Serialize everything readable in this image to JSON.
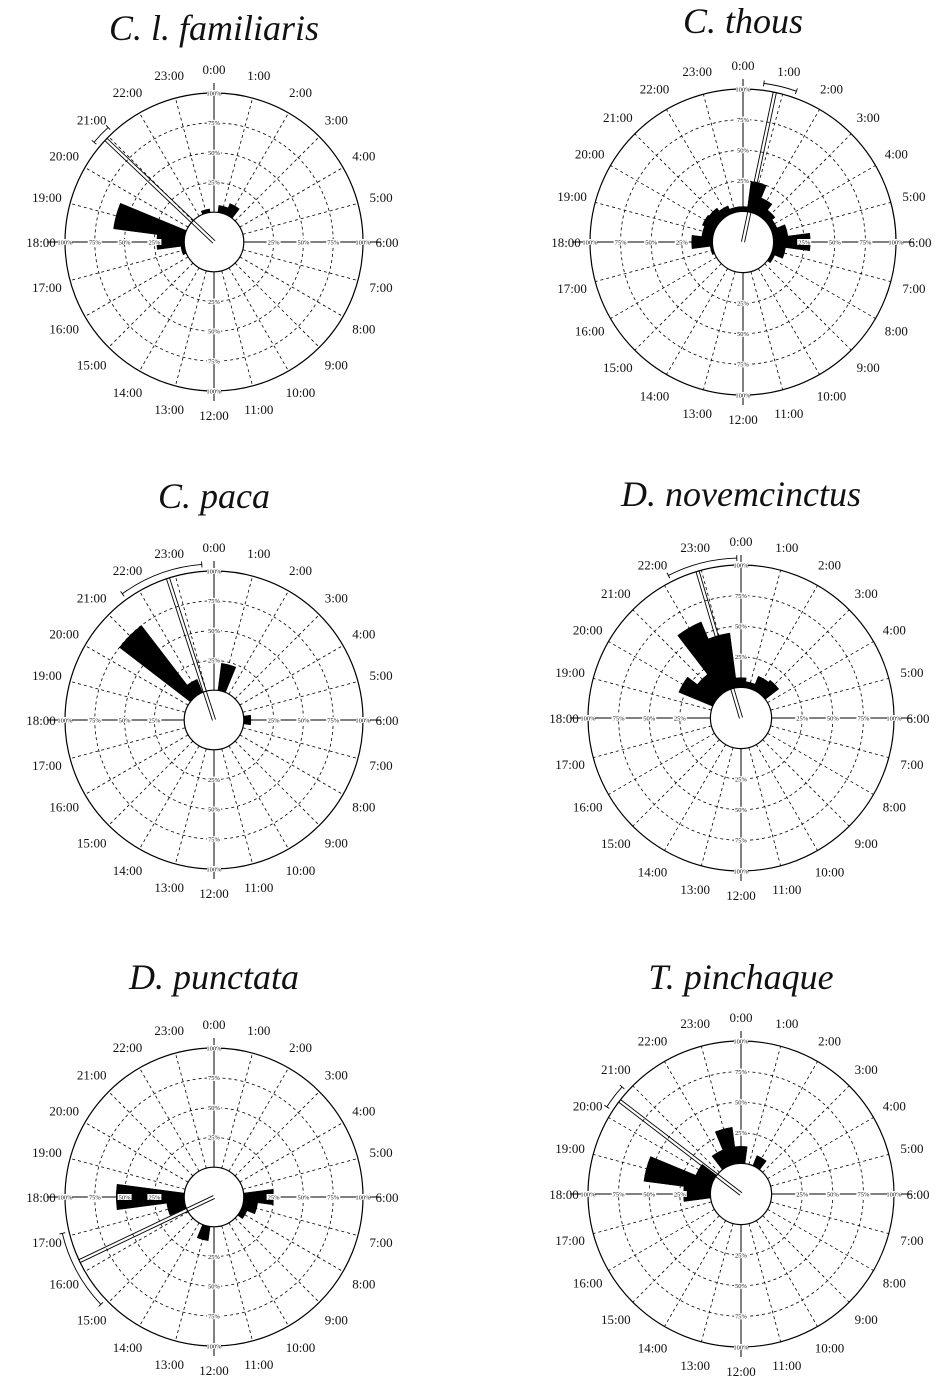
{
  "chart_data": [
    {
      "type": "rose",
      "title": "C. l. familiaris",
      "hour_labels": [
        "0:00",
        "1:00",
        "2:00",
        "3:00",
        "4:00",
        "5:00",
        "6:00",
        "7:00",
        "8:00",
        "9:00",
        "10:00",
        "11:00",
        "12:00",
        "13:00",
        "14:00",
        "15:00",
        "16:00",
        "17:00",
        "18:00",
        "19:00",
        "20:00",
        "21:00",
        "22:00",
        "23:00"
      ],
      "ring_labels": [
        "25%",
        "50%",
        "75%",
        "100%"
      ],
      "rlim": [
        0,
        100
      ],
      "values": [
        0,
        6,
        10,
        0,
        0,
        0,
        0,
        0,
        0,
        0,
        0,
        0,
        0,
        0,
        0,
        0,
        0,
        3,
        23,
        60,
        0,
        0,
        0,
        3
      ],
      "mean_hour": 20.9,
      "ci_hours": [
        20.65,
        21.15
      ],
      "mean_length": 100
    },
    {
      "type": "rose",
      "title": "C. thous",
      "hour_labels": [
        "0:00",
        "1:00",
        "2:00",
        "3:00",
        "4:00",
        "5:00",
        "6:00",
        "7:00",
        "8:00",
        "9:00",
        "10:00",
        "11:00",
        "12:00",
        "13:00",
        "14:00",
        "15:00",
        "16:00",
        "17:00",
        "18:00",
        "19:00",
        "20:00",
        "21:00",
        "22:00",
        "23:00"
      ],
      "ring_labels": [
        "25%",
        "50%",
        "75%",
        "100%"
      ],
      "rlim": [
        0,
        100
      ],
      "values": [
        4,
        25,
        14,
        8,
        5,
        12,
        30,
        10,
        3,
        0,
        0,
        0,
        0,
        0,
        0,
        0,
        0,
        2,
        17,
        9,
        11,
        10,
        7,
        4
      ],
      "mean_hour": 0.8,
      "ci_hours": [
        0.5,
        1.3
      ],
      "mean_length": 100
    },
    {
      "type": "rose",
      "title": "C. paca",
      "hour_labels": [
        "0:00",
        "1:00",
        "2:00",
        "3:00",
        "4:00",
        "5:00",
        "6:00",
        "7:00",
        "8:00",
        "9:00",
        "10:00",
        "11:00",
        "12:00",
        "13:00",
        "14:00",
        "15:00",
        "16:00",
        "17:00",
        "18:00",
        "19:00",
        "20:00",
        "21:00",
        "22:00",
        "23:00"
      ],
      "ring_labels": [
        "25%",
        "50%",
        "75%",
        "100%"
      ],
      "rlim": [
        0,
        100
      ],
      "values": [
        0,
        23,
        0,
        0,
        0,
        0,
        6,
        0,
        0,
        0,
        0,
        0,
        0,
        0,
        0,
        0,
        0,
        0,
        0,
        0,
        0,
        75,
        12,
        0
      ],
      "mean_hour": 22.8,
      "ci_hours": [
        21.6,
        23.7
      ],
      "mean_length": 100
    },
    {
      "type": "rose",
      "title": "D. novemcinctus",
      "hour_labels": [
        "0:00",
        "1:00",
        "2:00",
        "3:00",
        "4:00",
        "5:00",
        "6:00",
        "7:00",
        "8:00",
        "9:00",
        "10:00",
        "11:00",
        "12:00",
        "13:00",
        "14:00",
        "15:00",
        "16:00",
        "17:00",
        "18:00",
        "19:00",
        "20:00",
        "21:00",
        "22:00",
        "23:00"
      ],
      "ring_labels": [
        "25%",
        "50%",
        "75%",
        "100%"
      ],
      "rlim": [
        0,
        100
      ],
      "values": [
        8,
        5,
        12,
        14,
        0,
        0,
        0,
        0,
        0,
        0,
        0,
        0,
        0,
        0,
        0,
        0,
        0,
        0,
        0,
        0,
        30,
        20,
        60,
        45
      ],
      "mean_hour": 22.9,
      "ci_hours": [
        22.2,
        23.9
      ],
      "mean_length": 100
    },
    {
      "type": "rose",
      "title": "D. punctata",
      "hour_labels": [
        "0:00",
        "1:00",
        "2:00",
        "3:00",
        "4:00",
        "5:00",
        "6:00",
        "7:00",
        "8:00",
        "9:00",
        "10:00",
        "11:00",
        "12:00",
        "13:00",
        "14:00",
        "15:00",
        "16:00",
        "17:00",
        "18:00",
        "19:00",
        "20:00",
        "21:00",
        "22:00",
        "23:00"
      ],
      "ring_labels": [
        "25%",
        "50%",
        "75%",
        "100%"
      ],
      "rlim": [
        0,
        100
      ],
      "values": [
        0,
        0,
        0,
        0,
        0,
        0,
        25,
        12,
        5,
        0,
        0,
        0,
        0,
        12,
        0,
        0,
        0,
        15,
        57,
        0,
        0,
        0,
        0,
        0
      ],
      "mean_hour": 16.3,
      "ci_hours": [
        15.1,
        17.1
      ],
      "mean_length": 100
    },
    {
      "type": "rose",
      "title": "T. pinchaque",
      "hour_labels": [
        "0:00",
        "1:00",
        "2:00",
        "3:00",
        "4:00",
        "5:00",
        "6:00",
        "7:00",
        "8:00",
        "9:00",
        "10:00",
        "11:00",
        "12:00",
        "13:00",
        "14:00",
        "15:00",
        "16:00",
        "17:00",
        "18:00",
        "19:00",
        "20:00",
        "21:00",
        "22:00",
        "23:00"
      ],
      "ring_labels": [
        "25%",
        "50%",
        "75%",
        "100%"
      ],
      "rlim": [
        0,
        100
      ],
      "values": [
        14,
        0,
        9,
        0,
        0,
        0,
        0,
        0,
        0,
        0,
        0,
        0,
        0,
        0,
        0,
        0,
        0,
        0,
        22,
        55,
        15,
        0,
        14,
        30
      ],
      "mean_hour": 20.5,
      "ci_hours": [
        20.2,
        20.8
      ],
      "mean_length": 100
    }
  ]
}
